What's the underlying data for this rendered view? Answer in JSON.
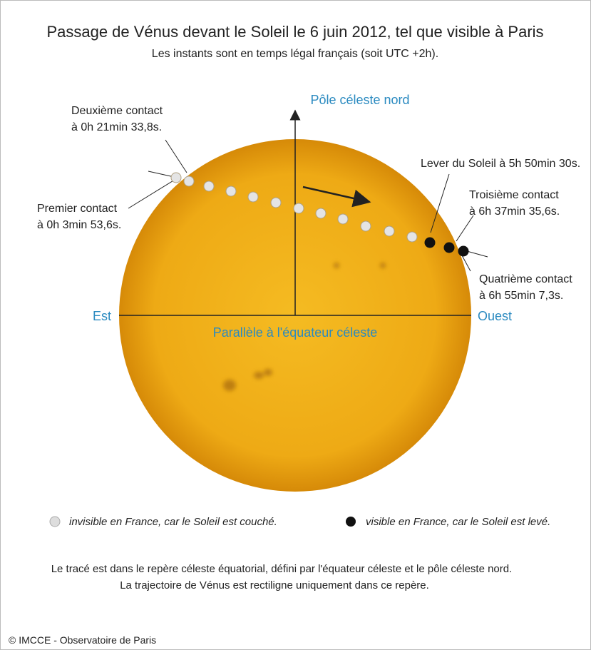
{
  "header": {
    "title": "Passage de Vénus devant le Soleil le 6 juin 2012, tel que visible à Paris",
    "subtitle": "Les instants sont en temps légal français (soit UTC +2h)."
  },
  "axes": {
    "north": "Pôle céleste nord",
    "east": "Est",
    "west": "Ouest",
    "equator": "Parallèle à l'équateur céleste"
  },
  "annotations": [
    {
      "lines": [
        "Deuxième contact",
        "à 0h 21min 33,8s."
      ]
    },
    {
      "lines": [
        "Premier contact",
        "à 0h 3min 53,6s."
      ]
    },
    {
      "lines": [
        "Lever du Soleil à 5h 50min 30s."
      ]
    },
    {
      "lines": [
        "Troisième contact",
        "à 6h 37min 35,6s."
      ]
    },
    {
      "lines": [
        "Quatrième contact",
        "à 6h 55min 7,3s."
      ]
    }
  ],
  "legend": {
    "invisible": "invisible en France, car le Soleil est couché.",
    "visible": "visible en France, car le Soleil est levé."
  },
  "notes": [
    "Le tracé est dans le repère céleste équatorial, défini par l'équateur céleste et le pôle céleste nord.",
    "La trajectoire de Vénus est rectiligne uniquement dans ce repère."
  ],
  "copyright": "©  IMCCE - Observatoire de Paris"
}
